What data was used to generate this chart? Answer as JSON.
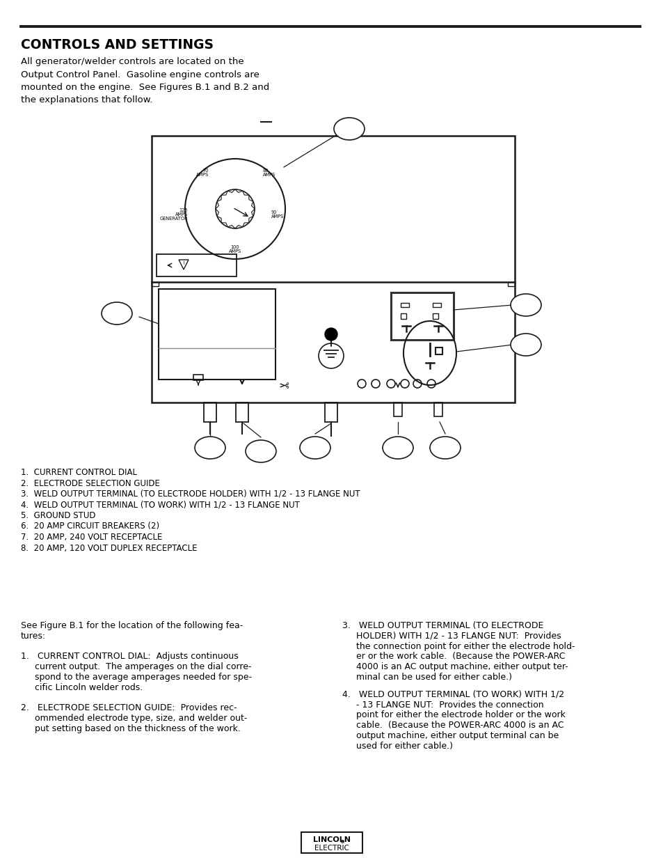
{
  "title": "CONTROLS AND SETTINGS",
  "intro_text": "All generator/welder controls are located on the\nOutput Control Panel.  Gasoline engine controls are\nmounted on the engine.  See Figures B.1 and B.2 and\nthe explanations that follow.",
  "numbered_list": [
    "1.  CURRENT CONTROL DIAL",
    "2.  ELECTRODE SELECTION GUIDE",
    "3.  WELD OUTPUT TERMINAL (TO ELECTRODE HOLDER) WITH 1/2 - 13 FLANGE NUT",
    "4.  WELD OUTPUT TERMINAL (TO WORK) WITH 1/2 - 13 FLANGE NUT",
    "5.  GROUND STUD",
    "6.  20 AMP CIRCUIT BREAKERS (2)",
    "7.  20 AMP, 240 VOLT RECEPTACLE",
    "8.  20 AMP, 120 VOLT DUPLEX RECEPTACLE"
  ],
  "left_col_text": [
    "See Figure B.1 for the location of the following fea-",
    "tures:",
    "",
    "1.   CURRENT CONTROL DIAL:  Adjusts continuous",
    "     current output.  The amperages on the dial corre-",
    "     spond to the average amperages needed for spe-",
    "     cific Lincoln welder rods.",
    "",
    "2.   ELECTRODE SELECTION GUIDE:  Provides rec-",
    "     ommended electrode type, size, and welder out-",
    "     put setting based on the thickness of the work."
  ],
  "right_col_text_3": [
    "3.   WELD OUTPUT TERMINAL (TO ELECTRODE",
    "     HOLDER) WITH 1/2 - 13 FLANGE NUT:  Provides",
    "     the connection point for either the electrode hold-",
    "     er or the work cable.  (Because the POWER-ARC",
    "     4000 is an AC output machine, either output ter-",
    "     minal can be used for either cable.)"
  ],
  "right_col_text_4": [
    "4.   WELD OUTPUT TERMINAL (TO WORK) WITH 1/2",
    "     - 13 FLANGE NUT:  Provides the connection",
    "     point for either the electrode holder or the work",
    "     cable.  (Because the POWER-ARC 4000 is an AC",
    "     output machine, either output terminal can be",
    "     used for either cable.)"
  ],
  "background": "#ffffff",
  "text_color": "#000000",
  "line_color": "#1a1a1a"
}
